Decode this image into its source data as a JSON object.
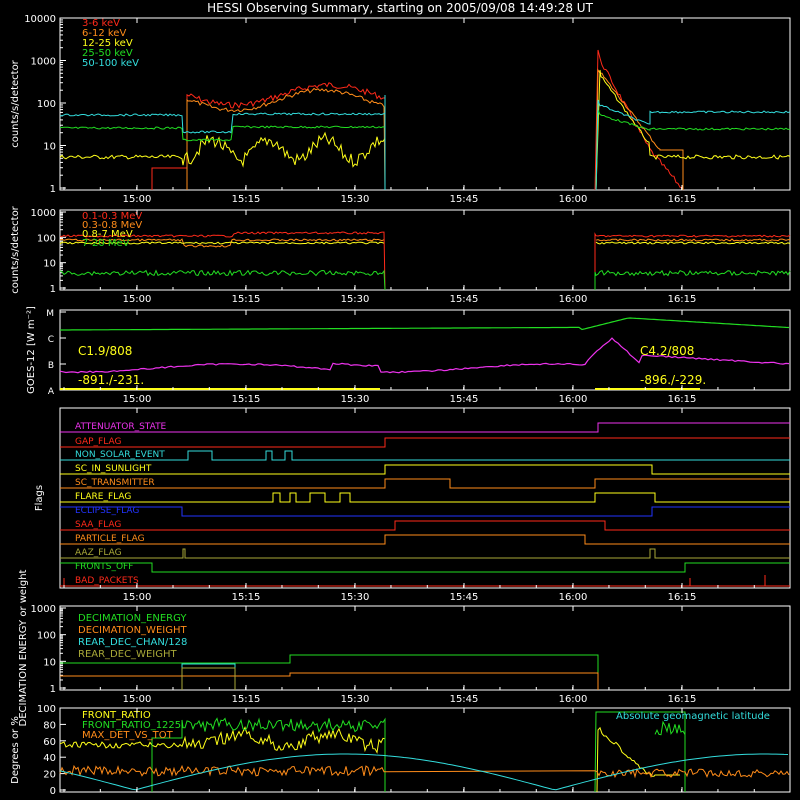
{
  "title": "HESSI Observing Summary, starting on 2005/09/08 14:49:28 UT",
  "colors": {
    "bg": "#000000",
    "axis": "#ffffff",
    "red": "#ff2a1a",
    "orange": "#ff8c1a",
    "yellow": "#ffff1a",
    "green": "#22dd22",
    "cyan": "#33dddd",
    "magenta": "#ee33ee",
    "blue": "#2233ff",
    "olive": "#a8a838",
    "brown": "#c9a050"
  },
  "time_ticks": [
    "15:00",
    "15:15",
    "15:30",
    "15:45",
    "16:00",
    "16:15"
  ],
  "chart_data": [
    {
      "id": "lightcurves",
      "type": "line",
      "ylabel": "counts/s/detector",
      "ylog": true,
      "ylim": [
        1,
        10000
      ],
      "yticks": [
        "1",
        "10",
        "100",
        "1000",
        "10000"
      ],
      "legend": "top-left",
      "series": [
        {
          "name": "3-6 keV",
          "color": "#ff2a1a"
        },
        {
          "name": "6-12 keV",
          "color": "#ff8c1a"
        },
        {
          "name": "12-25 keV",
          "color": "#ffff1a"
        },
        {
          "name": "25-50 keV",
          "color": "#22dd22"
        },
        {
          "name": "50-100 keV",
          "color": "#33dddd"
        }
      ]
    },
    {
      "id": "high_energy",
      "type": "line",
      "ylabel": "counts/s/detector",
      "ylog": true,
      "ylim": [
        1,
        1000
      ],
      "yticks": [
        "1",
        "10",
        "100",
        "1000"
      ],
      "legend": "top-left",
      "series": [
        {
          "name": "0.1-0.3 MeV",
          "color": "#ff2a1a"
        },
        {
          "name": "0.3-0.8 MeV",
          "color": "#ff8c1a"
        },
        {
          "name": "0.8-7 MeV",
          "color": "#ffff1a"
        },
        {
          "name": "7-20 MeV",
          "color": "#22dd22"
        }
      ]
    },
    {
      "id": "goes",
      "type": "line",
      "ylabel": "GOES-12 [W m⁻²]",
      "yticks": [
        "A",
        "B",
        "C",
        "M"
      ],
      "annotations": {
        "class_left": "C1.9/808",
        "coords_left": "-891./-231.",
        "class_right": "C4.2/808",
        "coords_right": "-896./-229."
      }
    },
    {
      "id": "flags",
      "type": "line",
      "ylabel": "Flags",
      "flags": [
        {
          "name": "ATTENUATOR_STATE",
          "color": "#ee33ee"
        },
        {
          "name": "GAP_FLAG",
          "color": "#ff2a1a"
        },
        {
          "name": "NON_SOLAR_EVENT",
          "color": "#33dddd"
        },
        {
          "name": "SC_IN_SUNLIGHT",
          "color": "#ffff1a"
        },
        {
          "name": "SC_TRANSMITTER",
          "color": "#ff8c1a"
        },
        {
          "name": "FLARE_FLAG",
          "color": "#ffff1a"
        },
        {
          "name": "ECLIPSE_FLAG",
          "color": "#2233ff"
        },
        {
          "name": "SAA_FLAG",
          "color": "#ff2a1a"
        },
        {
          "name": "PARTICLE_FLAG",
          "color": "#ff8c1a"
        },
        {
          "name": "AAZ_FLAG",
          "color": "#a8a838"
        },
        {
          "name": "FRONTS_OFF",
          "color": "#22dd22"
        },
        {
          "name": "BAD_PACKETS",
          "color": "#ff2a1a"
        }
      ]
    },
    {
      "id": "decimation",
      "type": "line",
      "ylabel": "DECIMATION ENERGY or weight",
      "ylog": true,
      "ylim": [
        1,
        1000
      ],
      "yticks": [
        "1",
        "10",
        "100",
        "1000"
      ],
      "legend": "top-left",
      "series": [
        {
          "name": "DECIMATION_ENERGY",
          "color": "#22dd22"
        },
        {
          "name": "DECIMATION_WEIGHT",
          "color": "#ff8c1a"
        },
        {
          "name": "REAR_DEC_CHAN/128",
          "color": "#33dddd"
        },
        {
          "name": "REAR_DEC_WEIGHT",
          "color": "#a8a838"
        }
      ]
    },
    {
      "id": "ratios",
      "type": "line",
      "ylabel": "Degrees or %",
      "ylim": [
        0,
        100
      ],
      "yticks": [
        "0",
        "20",
        "40",
        "60",
        "80",
        "100"
      ],
      "legend": "top-left",
      "series": [
        {
          "name": "FRONT_RATIO",
          "color": "#ffff1a"
        },
        {
          "name": "FRONT_RATIO_1225",
          "color": "#22dd22"
        },
        {
          "name": "MAX_DET_VS_TOT",
          "color": "#ff8c1a"
        }
      ],
      "right_label": {
        "text": "Absolute geomagnetic latitude",
        "color": "#33dddd"
      }
    }
  ]
}
